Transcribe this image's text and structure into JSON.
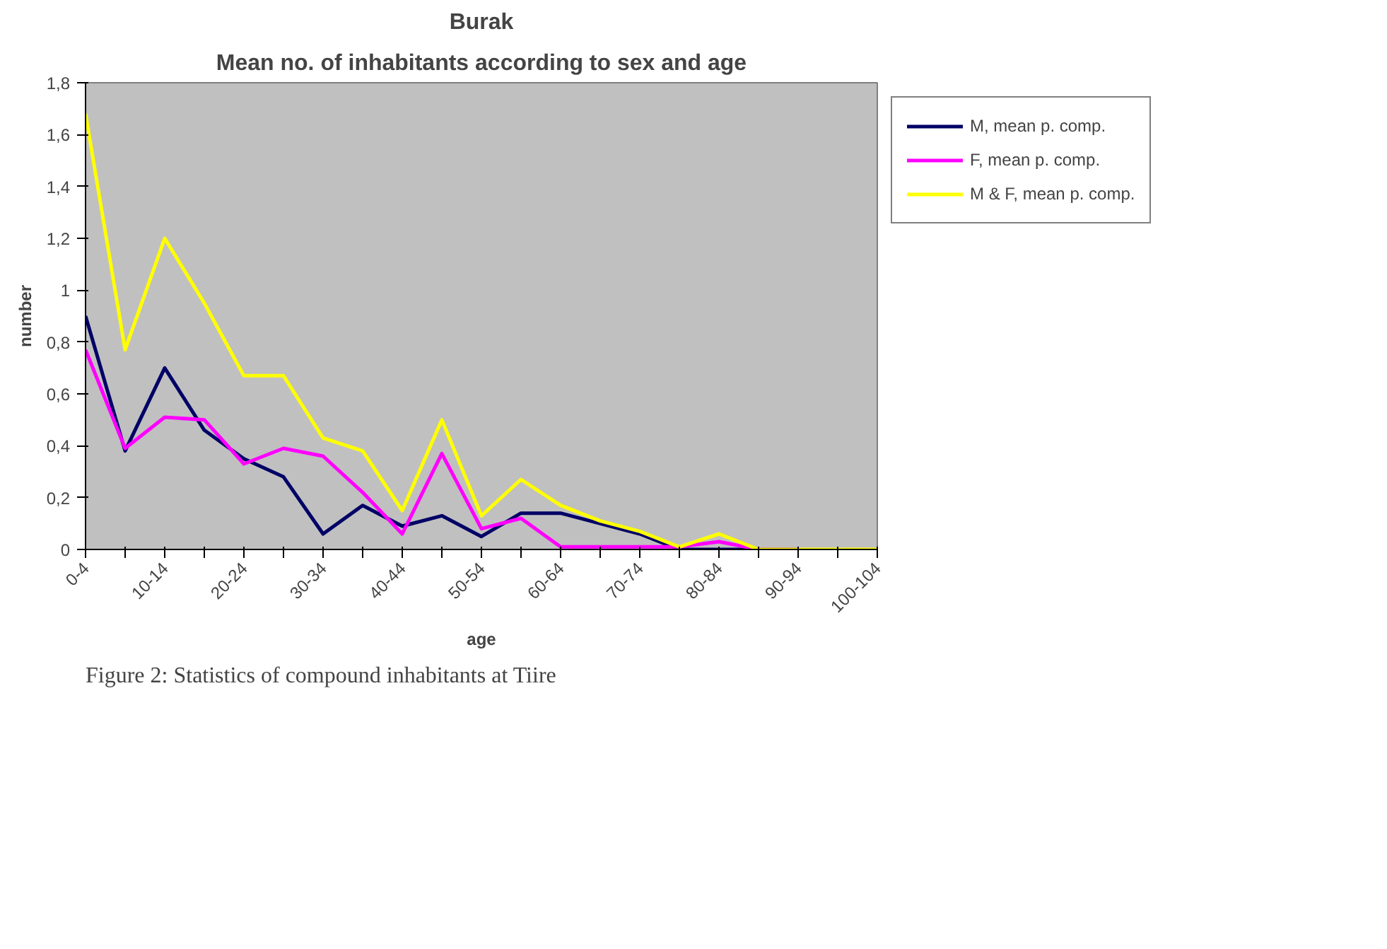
{
  "chart_data": {
    "type": "line",
    "title": "Burak",
    "subtitle": "Mean no. of inhabitants according to sex and age",
    "xlabel": "age",
    "ylabel": "number",
    "categories": [
      "0-4",
      null,
      "10-14",
      null,
      "20-24",
      null,
      "30-34",
      null,
      "40-44",
      null,
      "50-54",
      null,
      "60-64",
      null,
      "70-74",
      null,
      "80-84",
      null,
      "90-94",
      null,
      "100-104"
    ],
    "series": [
      {
        "name": "M, mean p. comp.",
        "color": "#000066",
        "values": [
          0.9,
          0.38,
          0.7,
          0.46,
          0.35,
          0.28,
          0.06,
          0.17,
          0.09,
          0.13,
          0.05,
          0.14,
          0.14,
          0.1,
          0.06,
          0,
          0,
          0,
          0,
          null,
          null
        ]
      },
      {
        "name": "F, mean p. comp.",
        "color": "#ff00ff",
        "values": [
          0.77,
          0.39,
          0.51,
          0.5,
          0.33,
          0.39,
          0.36,
          0.22,
          0.06,
          0.37,
          0.08,
          0.12,
          0.01,
          0.01,
          0.01,
          0.01,
          0.03,
          0,
          0,
          null,
          null
        ]
      },
      {
        "name": "M & F, mean p. comp.",
        "color": "#ffff00",
        "values": [
          1.68,
          0.77,
          1.2,
          0.95,
          0.67,
          0.67,
          0.43,
          0.38,
          0.15,
          0.5,
          0.13,
          0.27,
          0.17,
          0.11,
          0.07,
          0.01,
          0.06,
          0,
          0,
          0,
          0
        ]
      }
    ],
    "ylim": [
      0,
      1.8
    ],
    "yticks": [
      0,
      {
        "value": 0.2,
        "label": "0,2"
      },
      {
        "value": 0.4,
        "label": "0,4"
      },
      {
        "value": 0.6,
        "label": "0,6"
      },
      {
        "value": 0.8,
        "label": "0,8"
      },
      1,
      {
        "value": 1.2,
        "label": "1,2"
      },
      {
        "value": 1.4,
        "label": "1,4"
      },
      {
        "value": 1.6,
        "label": "1,6"
      },
      {
        "value": 1.8,
        "label": "1,8"
      }
    ],
    "grid": false,
    "legend": "right",
    "marker": "none",
    "line_style": "solid",
    "annotations": [
      "Figure 2: Statistics of compound inhabitants at Tiire"
    ]
  }
}
